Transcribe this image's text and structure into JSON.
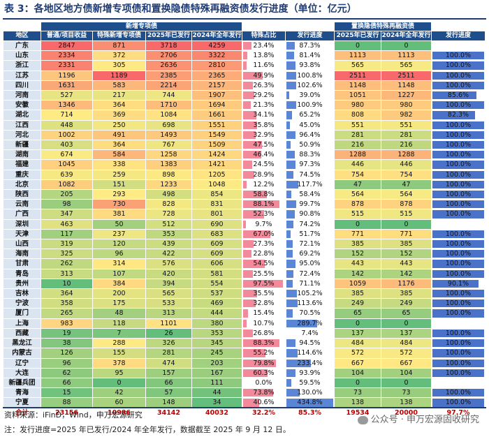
{
  "title": "表 3：各地区地方债新增专项债和置换隐债特殊再融资债发行进度（单位：亿元）",
  "headers": {
    "group_new_special": "新增专项债",
    "group_refinance": "置换隐债特殊再融资债",
    "region": "地区",
    "normal_project": "普通/项目收益",
    "special_new": "特殊新增专项债",
    "issued_2025": "2025年已发行",
    "full_2024": "2024年全年发行",
    "special_share": "特殊占比",
    "progress": "发行进度",
    "refi_issued_2025": "2025年已发行",
    "refi_full_2024": "2024年全年发行",
    "refi_progress": "发行进度"
  },
  "rows": [
    {
      "region": "广东",
      "normal": "2847",
      "special": "871",
      "issued": "3718",
      "full": "4259",
      "share": "23.4%",
      "progress": "87.3%",
      "refi2025": "0",
      "refi2024": "0",
      "refiprog": ""
    },
    {
      "region": "山东",
      "normal": "2334",
      "special": "372",
      "issued": "2706",
      "full": "3322",
      "share": "13.8%",
      "progress": "81.4%",
      "refi2025": "1113",
      "refi2024": "1113",
      "refiprog": "100.0%"
    },
    {
      "region": "浙江",
      "normal": "2331",
      "special": "305",
      "issued": "2636",
      "full": "2810",
      "share": "11.6%",
      "progress": "93.8%",
      "refi2025": "565",
      "refi2024": "565",
      "refiprog": "100.0%"
    },
    {
      "region": "江苏",
      "normal": "1196",
      "special": "1189",
      "issued": "2385",
      "full": "2365",
      "share": "49.9%",
      "progress": "100.8%",
      "refi2025": "2511",
      "refi2024": "2511",
      "refiprog": "100.0%"
    },
    {
      "region": "四川",
      "normal": "1631",
      "special": "583",
      "issued": "2214",
      "full": "2157",
      "share": "26.3%",
      "progress": "102.6%",
      "refi2025": "1148",
      "refi2024": "1148",
      "refiprog": "100.0%"
    },
    {
      "region": "河南",
      "normal": "527",
      "special": "217",
      "issued": "744",
      "full": "1907",
      "share": "29.2%",
      "progress": "39.0%",
      "refi2025": "1051",
      "refi2024": "1227",
      "refiprog": "85.6%"
    },
    {
      "region": "安徽",
      "normal": "1346",
      "special": "364",
      "issued": "1710",
      "full": "1694",
      "share": "21.3%",
      "progress": "100.9%",
      "refi2025": "980",
      "refi2024": "980",
      "refiprog": "100.0%"
    },
    {
      "region": "湖北",
      "normal": "714",
      "special": "369",
      "issued": "1084",
      "full": "1661",
      "share": "34.1%",
      "progress": "65.2%",
      "refi2025": "808",
      "refi2024": "982",
      "refiprog": "82.3%"
    },
    {
      "region": "江西",
      "normal": "448",
      "special": "250",
      "issued": "698",
      "full": "1551",
      "share": "35.8%",
      "progress": "45.0%",
      "refi2025": "551",
      "refi2024": "551",
      "refiprog": "100.0%"
    },
    {
      "region": "河北",
      "normal": "1002",
      "special": "491",
      "issued": "1493",
      "full": "1549",
      "share": "32.9%",
      "progress": "96.4%",
      "refi2025": "281",
      "refi2024": "281",
      "refiprog": "100.0%"
    },
    {
      "region": "新疆",
      "normal": "403",
      "special": "364",
      "issued": "767",
      "full": "1509",
      "share": "47.5%",
      "progress": "50.9%",
      "refi2025": "216",
      "refi2024": "216",
      "refiprog": "100.0%"
    },
    {
      "region": "湖南",
      "normal": "674",
      "special": "584",
      "issued": "1258",
      "full": "1424",
      "share": "46.4%",
      "progress": "88.3%",
      "refi2025": "1288",
      "refi2024": "1288",
      "refiprog": "100.0%"
    },
    {
      "region": "福建",
      "normal": "1045",
      "special": "338",
      "issued": "1383",
      "full": "1421",
      "share": "24.5%",
      "progress": "97.3%",
      "refi2025": "446",
      "refi2024": "446",
      "refiprog": "100.0%"
    },
    {
      "region": "重庆",
      "normal": "639",
      "special": "259",
      "issued": "898",
      "full": "1205",
      "share": "28.9%",
      "progress": "74.5%",
      "refi2025": "754",
      "refi2024": "754",
      "refiprog": "100.0%"
    },
    {
      "region": "北京",
      "normal": "1082",
      "special": "151",
      "issued": "1233",
      "full": "1048",
      "share": "12.2%",
      "progress": "117.7%",
      "refi2025": "47",
      "refi2024": "47",
      "refiprog": "100.0%"
    },
    {
      "region": "陕西",
      "normal": "205",
      "special": "293",
      "issued": "498",
      "full": "854",
      "share": "58.8%",
      "progress": "58.4%",
      "refi2025": "564",
      "refi2024": "564",
      "refiprog": "100.0%"
    },
    {
      "region": "云南",
      "normal": "98",
      "special": "730",
      "issued": "828",
      "full": "831",
      "share": "88.1%",
      "progress": "99.7%",
      "refi2025": "878",
      "refi2024": "878",
      "refiprog": "100.0%"
    },
    {
      "region": "广西",
      "normal": "347",
      "special": "381",
      "issued": "728",
      "full": "801",
      "share": "52.3%",
      "progress": "90.8%",
      "refi2025": "515",
      "refi2024": "515",
      "refiprog": "100.0%"
    },
    {
      "region": "深圳",
      "normal": "463",
      "special": "50",
      "issued": "512",
      "full": "690",
      "share": "9.7%",
      "progress": "74.2%",
      "refi2025": "0",
      "refi2024": "0",
      "refiprog": ""
    },
    {
      "region": "天津",
      "normal": "117",
      "special": "237",
      "issued": "353",
      "full": "683",
      "share": "67.0%",
      "progress": "51.7%",
      "refi2025": "771",
      "refi2024": "771",
      "refiprog": "100.0%"
    },
    {
      "region": "山西",
      "normal": "319",
      "special": "120",
      "issued": "439",
      "full": "609",
      "share": "27.3%",
      "progress": "72.1%",
      "refi2025": "385",
      "refi2024": "385",
      "refiprog": "100.0%"
    },
    {
      "region": "海南",
      "normal": "325",
      "special": "96",
      "issued": "422",
      "full": "609",
      "share": "22.8%",
      "progress": "69.2%",
      "refi2025": "152",
      "refi2024": "152",
      "refiprog": "100.0%"
    },
    {
      "region": "甘肃",
      "normal": "262",
      "special": "314",
      "issued": "576",
      "full": "606",
      "share": "54.5%",
      "progress": "95.0%",
      "refi2025": "443",
      "refi2024": "443",
      "refiprog": "100.0%"
    },
    {
      "region": "青岛",
      "normal": "313",
      "special": "107",
      "issued": "420",
      "full": "581",
      "share": "25.5%",
      "progress": "72.4%",
      "refi2025": "142",
      "refi2024": "142",
      "refiprog": "100.0%"
    },
    {
      "region": "贵州",
      "normal": "10",
      "special": "384",
      "issued": "394",
      "full": "554",
      "share": "97.5%",
      "progress": "71.1%",
      "refi2025": "1059",
      "refi2024": "1176",
      "refiprog": "90.1%"
    },
    {
      "region": "吉林",
      "normal": "364",
      "special": "200",
      "issued": "565",
      "full": "537",
      "share": "35.5%",
      "progress": "105.2%",
      "refi2025": "385",
      "refi2024": "385",
      "refiprog": "100.0%"
    },
    {
      "region": "宁波",
      "normal": "358",
      "special": "175",
      "issued": "533",
      "full": "469",
      "share": "32.8%",
      "progress": "113.6%",
      "refi2025": "249",
      "refi2024": "249",
      "refiprog": "100.0%"
    },
    {
      "region": "厦门",
      "normal": "265",
      "special": "48",
      "issued": "313",
      "full": "444",
      "share": "15.4%",
      "progress": "70.5%",
      "refi2025": "65",
      "refi2024": "65",
      "refiprog": "100.0%"
    },
    {
      "region": "上海",
      "normal": "983",
      "special": "118",
      "issued": "1101",
      "full": "380",
      "share": "10.7%",
      "progress": "289.7%",
      "refi2025": "0",
      "refi2024": "0",
      "refiprog": ""
    },
    {
      "region": "西藏",
      "normal": "19",
      "special": "7",
      "issued": "26",
      "full": "353",
      "share": "26.8%",
      "progress": "7.4%",
      "refi2025": "137",
      "refi2024": "137",
      "refiprog": "100.0%"
    },
    {
      "region": "黑龙江",
      "normal": "38",
      "special": "288",
      "issued": "326",
      "full": "345",
      "share": "88.3%",
      "progress": "94.5%",
      "refi2025": "484",
      "refi2024": "484",
      "refiprog": "100.0%"
    },
    {
      "region": "内蒙古",
      "normal": "126",
      "special": "155",
      "issued": "281",
      "full": "245",
      "share": "55.2%",
      "progress": "114.6%",
      "refi2025": "572",
      "refi2024": "572",
      "refiprog": "100.0%"
    },
    {
      "region": "辽宁",
      "normal": "96",
      "special": "378",
      "issued": "474",
      "full": "203",
      "share": "79.8%",
      "progress": "233.4%",
      "refi2025": "667",
      "refi2024": "667",
      "refiprog": "100.0%"
    },
    {
      "region": "大连",
      "normal": "62",
      "special": "95",
      "issued": "157",
      "full": "167",
      "share": "60.3%",
      "progress": "93.9%",
      "refi2025": "104",
      "refi2024": "104",
      "refiprog": "100.0%"
    },
    {
      "region": "新疆兵团",
      "normal": "66",
      "special": "0",
      "issued": "66",
      "full": "111",
      "share": "0.0%",
      "progress": "59.5%",
      "refi2025": "0",
      "refi2024": "0",
      "refiprog": ""
    },
    {
      "region": "青海",
      "normal": "15",
      "special": "42",
      "issued": "57",
      "full": "44",
      "share": "73.8%",
      "progress": "130.0%",
      "refi2025": "73",
      "refi2024": "73",
      "refiprog": "100.0%"
    },
    {
      "region": "宁夏",
      "normal": "88",
      "special": "60",
      "issued": "148",
      "full": "34",
      "share": "40.6%",
      "progress": "434.8%",
      "refi2025": "138",
      "refi2024": "138",
      "refiprog": "100.0%"
    }
  ],
  "total": {
    "region": "合计",
    "normal": "23156",
    "special": "10986",
    "issued": "34142",
    "full": "40032",
    "share": "32.2%",
    "progress": "85.3%",
    "refi2025": "19534",
    "refi2024": "20000",
    "refiprog": "97.7%"
  },
  "footer": {
    "source": "资料来源：iFinD，Wind，申万宏源研究",
    "note": "注：发行进度=2025 年已发行/2024 年全年发行，数据截至 2025 年 9 月 12 日。",
    "watermark": "公众号 · 申万宏源固收研究"
  },
  "colors": {
    "header": "#1f4e8c",
    "title": "#1f3b73",
    "pink": "#f28a9b",
    "blue": "#5b86d6",
    "refi_blue": "#4a72c8"
  }
}
